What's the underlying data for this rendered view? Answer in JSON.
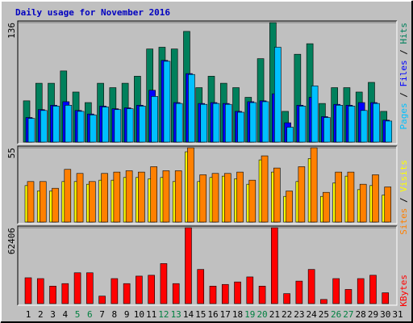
{
  "chart_data": {
    "type": "bar",
    "title": "Daily usage for November 2016",
    "categories": [
      "1",
      "2",
      "3",
      "4",
      "5",
      "6",
      "7",
      "8",
      "9",
      "10",
      "11",
      "12",
      "13",
      "14",
      "15",
      "16",
      "17",
      "18",
      "19",
      "20",
      "21",
      "22",
      "23",
      "24",
      "25",
      "26",
      "27",
      "28",
      "29",
      "30",
      "31"
    ],
    "highlighted_indices": [
      4,
      5,
      11,
      12,
      18,
      19,
      25,
      26
    ],
    "highlight_color": "#008040",
    "legend_separator": "/",
    "panels": [
      {
        "ylim": [
          0,
          136
        ],
        "yticks": [
          136
        ],
        "series": [
          {
            "name": "Hits",
            "color": "#00805c",
            "values": [
              47,
              67,
              67,
              81,
              57,
              45,
              67,
              62,
              67,
              75,
              106,
              108,
              106,
              126,
              62,
              75,
              67,
              62,
              51,
              95,
              136,
              35,
              100,
              112,
              44,
              62,
              62,
              57,
              68,
              35,
              0
            ]
          },
          {
            "name": "Files",
            "color": "#0000ff",
            "values": [
              28,
              37,
              42,
              46,
              36,
              32,
              41,
              38,
              39,
              42,
              59,
              93,
              45,
              78,
              44,
              45,
              44,
              35,
              46,
              47,
              55,
              22,
              42,
              51,
              29,
              43,
              42,
              45,
              45,
              25,
              0
            ]
          },
          {
            "name": "Pages",
            "color": "#00c0ff",
            "values": [
              27,
              36,
              41,
              42,
              35,
              31,
              40,
              37,
              38,
              41,
              52,
              92,
              44,
              77,
              43,
              44,
              43,
              34,
              45,
              46,
              108,
              17,
              41,
              64,
              28,
              42,
              41,
              36,
              44,
              24,
              0
            ]
          }
        ]
      },
      {
        "ylim": [
          0,
          55
        ],
        "yticks": [
          55
        ],
        "series": [
          {
            "name": "Visits",
            "color": "#ffff00",
            "values": [
              27,
              23,
              23,
              30,
              30,
              28,
              31,
              31,
              33,
              33,
              32,
              33,
              30,
              52,
              30,
              33,
              34,
              32,
              28,
              46,
              37,
              19,
              30,
              47,
              19,
              29,
              34,
              24,
              27,
              20,
              0
            ]
          },
          {
            "name": "Sites",
            "color": "#ff8000",
            "values": [
              30,
              30,
              25,
              39,
              36,
              30,
              36,
              37,
              38,
              37,
              41,
              38,
              38,
              55,
              35,
              36,
              36,
              37,
              31,
              49,
              40,
              23,
              41,
              55,
              22,
              37,
              37,
              28,
              35,
              26,
              0
            ]
          }
        ]
      },
      {
        "ylim": [
          0,
          62406
        ],
        "yticks": [
          62406
        ],
        "series": [
          {
            "name": "KBytes",
            "color": "#ff0000",
            "values": [
              21260,
              20570,
              14400,
              16460,
              25370,
              25370,
              6170,
              20570,
              16460,
              22630,
              23320,
              32920,
              16460,
              62406,
              28120,
              14400,
              15770,
              17830,
              21950,
              14400,
              62406,
              8230,
              18520,
              28120,
              3430,
              20570,
              11660,
              20570,
              23320,
              8920,
              0
            ]
          }
        ]
      }
    ]
  }
}
